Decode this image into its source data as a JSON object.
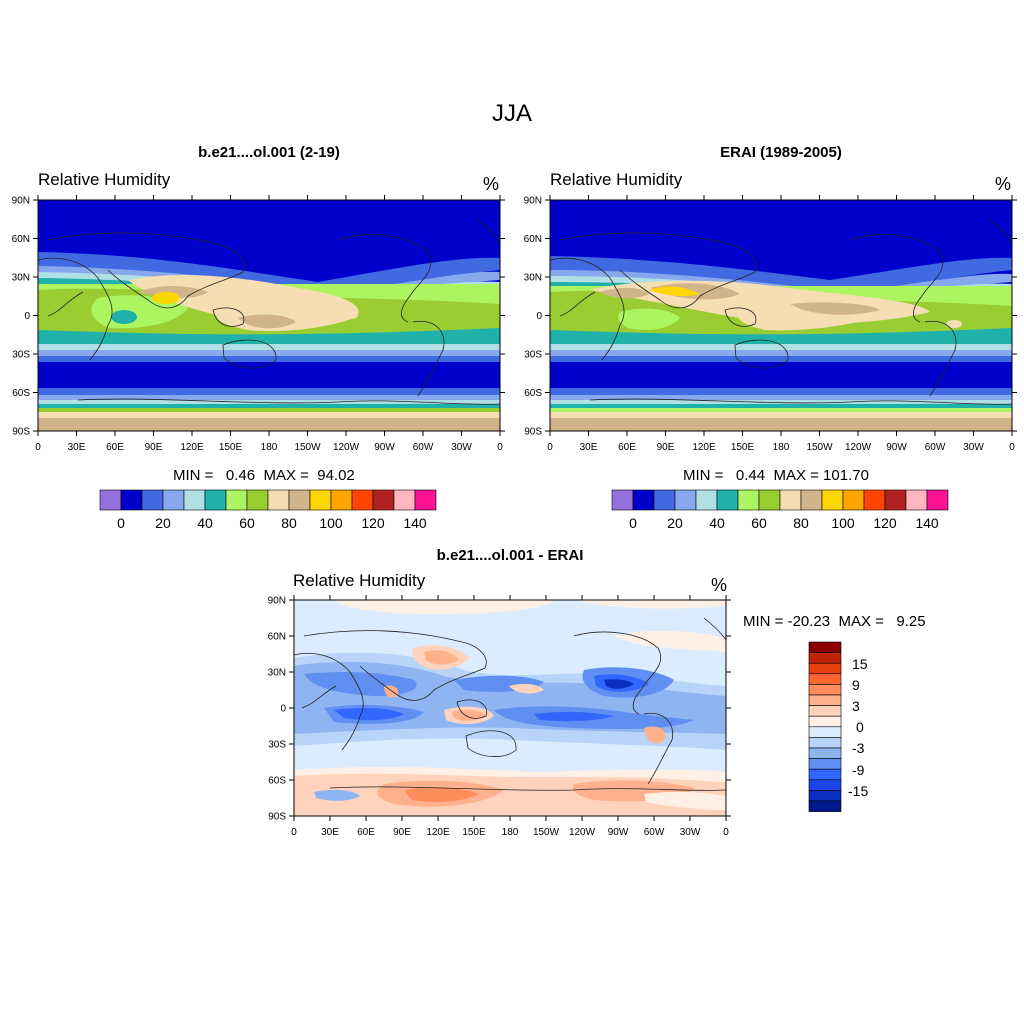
{
  "figure": {
    "title": "JJA"
  },
  "panels": [
    {
      "title": "b.e21....ol.001 (2-19)",
      "variable": "Relative Humidity",
      "units": "%",
      "stats": "MIN =   0.46  MAX =  94.02",
      "lat_labels": [
        "90N",
        "60N",
        "30N",
        "0",
        "30S",
        "60S",
        "90S"
      ],
      "lon_labels": [
        "0",
        "30E",
        "60E",
        "90E",
        "120E",
        "150E",
        "180",
        "150W",
        "120W",
        "90W",
        "60W",
        "30W",
        "0"
      ],
      "colorbar": {
        "colors": [
          "#9370db",
          "#0000cd",
          "#4169e1",
          "#87a8ec",
          "#b0e0e6",
          "#20b2aa",
          "#adf560",
          "#9acd32",
          "#f5deb3",
          "#d2b48c",
          "#ffd700",
          "#ffa500",
          "#ff4500",
          "#b22222",
          "#ffb6c1",
          "#ff1493"
        ],
        "labels": [
          "0",
          "20",
          "40",
          "60",
          "80",
          "100",
          "120",
          "140"
        ]
      }
    },
    {
      "title": "ERAI (1989-2005)",
      "variable": "Relative Humidity",
      "units": "%",
      "stats": "MIN =   0.44  MAX = 101.70",
      "lat_labels": [
        "90N",
        "60N",
        "30N",
        "0",
        "30S",
        "60S",
        "90S"
      ],
      "lon_labels": [
        "0",
        "30E",
        "60E",
        "90E",
        "120E",
        "150E",
        "180",
        "150W",
        "120W",
        "90W",
        "60W",
        "30W",
        "0"
      ],
      "colorbar": {
        "colors": [
          "#9370db",
          "#0000cd",
          "#4169e1",
          "#87a8ec",
          "#b0e0e6",
          "#20b2aa",
          "#adf560",
          "#9acd32",
          "#f5deb3",
          "#d2b48c",
          "#ffd700",
          "#ffa500",
          "#ff4500",
          "#b22222",
          "#ffb6c1",
          "#ff1493"
        ],
        "labels": [
          "0",
          "20",
          "40",
          "60",
          "80",
          "100",
          "120",
          "140"
        ]
      }
    },
    {
      "title": "b.e21....ol.001 - ERAI",
      "variable": "Relative Humidity",
      "units": "%",
      "stats": "MIN = -20.23  MAX =   9.25",
      "lat_labels": [
        "90N",
        "60N",
        "30N",
        "0",
        "30S",
        "60S",
        "90S"
      ],
      "lon_labels": [
        "0",
        "30E",
        "60E",
        "90E",
        "120E",
        "150E",
        "180",
        "150W",
        "120W",
        "90W",
        "60W",
        "30W",
        "0"
      ],
      "colorbar": {
        "colors": [
          "#8b0000",
          "#c0240a",
          "#e8400c",
          "#ff6633",
          "#ff8c5a",
          "#ffb08c",
          "#ffd3bb",
          "#fff0e6",
          "#dcecff",
          "#b8d4f8",
          "#8fb4f2",
          "#5f8ff0",
          "#3366ff",
          "#1a44e6",
          "#0a2ec0",
          "#001a8c"
        ],
        "labels": [
          "15",
          "9",
          "3",
          "0",
          "-3",
          "-9",
          "-15"
        ]
      }
    }
  ]
}
